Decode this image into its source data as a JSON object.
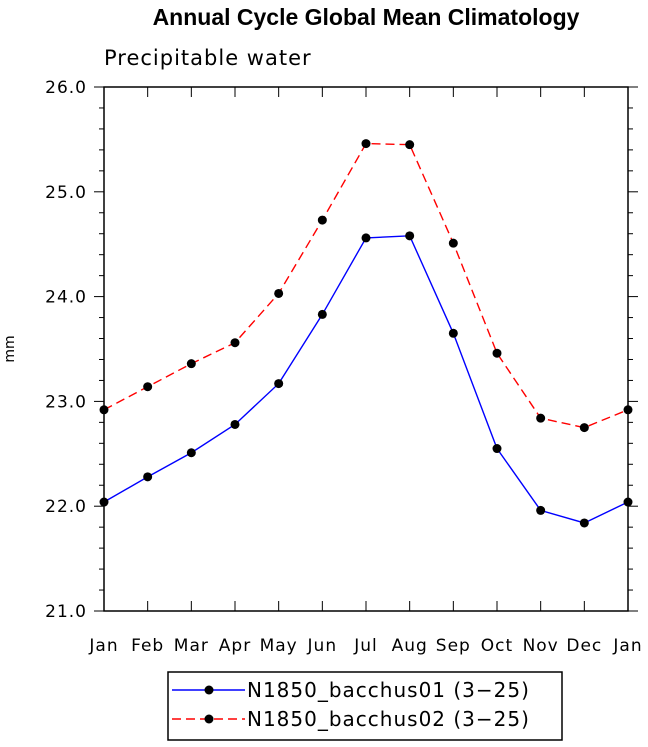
{
  "chart_data": {
    "type": "line",
    "title": "Annual Cycle Global Mean Climatology",
    "subtitle": "Precipitable water",
    "xlabel": "",
    "ylabel": "mm",
    "categories": [
      "Jan",
      "Feb",
      "Mar",
      "Apr",
      "May",
      "Jun",
      "Jul",
      "Aug",
      "Sep",
      "Oct",
      "Nov",
      "Dec",
      "Jan"
    ],
    "ylim": [
      21.0,
      26.0
    ],
    "yticks": [
      "21.0",
      "22.0",
      "23.0",
      "24.0",
      "25.0",
      "26.0"
    ],
    "grid": false,
    "legend_position": "bottom-center",
    "series": [
      {
        "name": "N1850_bacchus01 (3−25)",
        "color": "#0000ff",
        "dash": "solid",
        "marker": "filled-circle",
        "values": [
          22.04,
          22.28,
          22.51,
          22.78,
          23.17,
          23.83,
          24.56,
          24.58,
          23.65,
          22.55,
          21.96,
          21.84,
          22.04
        ]
      },
      {
        "name": "N1850_bacchus02 (3−25)",
        "color": "#ff0000",
        "dash": "dashed",
        "marker": "filled-circle",
        "values": [
          22.92,
          23.14,
          23.36,
          23.56,
          24.03,
          24.73,
          25.46,
          25.45,
          24.51,
          23.46,
          22.84,
          22.75,
          22.92
        ]
      }
    ]
  }
}
